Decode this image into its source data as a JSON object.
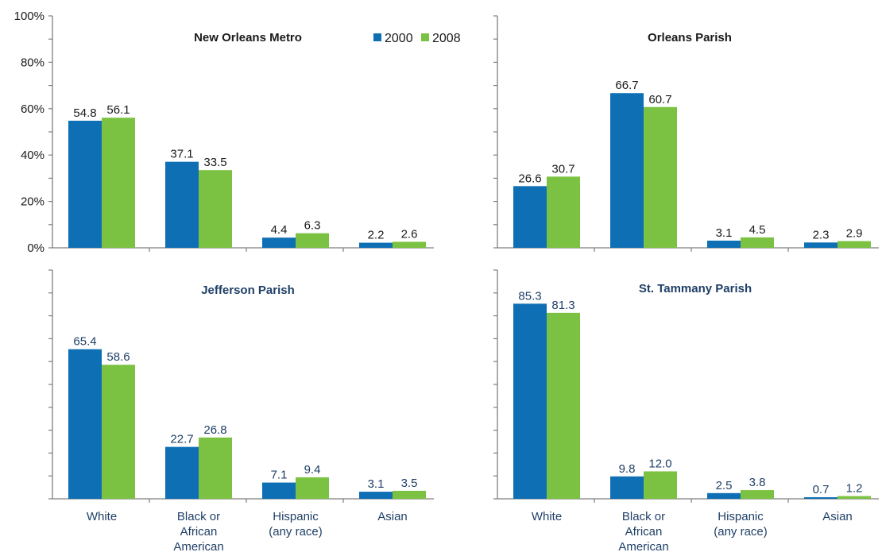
{
  "colors": {
    "series_2000": "#0f6fb4",
    "series_2008": "#7cc242",
    "axis": "#7f7f7f",
    "title_dark": "#1a1a1a",
    "title_blue": "#1f3f66"
  },
  "legend": {
    "placement": "top-right of first panel",
    "items": [
      "2000",
      "2008"
    ]
  },
  "chart_data": [
    {
      "type": "bar",
      "title": "New Orleans Metro",
      "categories": [
        "White",
        "Black or African American",
        "Hispanic (any race)",
        "Asian"
      ],
      "series": [
        {
          "name": "2000",
          "values": [
            54.8,
            37.1,
            4.4,
            2.2
          ]
        },
        {
          "name": "2008",
          "values": [
            56.1,
            33.5,
            6.3,
            2.6
          ]
        }
      ],
      "data_labels": [
        [
          "54.8",
          "37.1",
          "4.4",
          "2.2"
        ],
        [
          "56.1",
          "33.5",
          "6.3",
          "2.6"
        ]
      ],
      "ylim": [
        0,
        100
      ],
      "yticks": [
        "0%",
        "20%",
        "40%",
        "60%",
        "80%",
        "100%"
      ],
      "show_y_labels": true,
      "show_category_labels": false,
      "grid": false
    },
    {
      "type": "bar",
      "title": "Orleans Parish",
      "categories": [
        "White",
        "Black or African American",
        "Hispanic (any race)",
        "Asian"
      ],
      "series": [
        {
          "name": "2000",
          "values": [
            26.6,
            66.7,
            3.1,
            2.3
          ]
        },
        {
          "name": "2008",
          "values": [
            30.7,
            60.7,
            4.5,
            2.9
          ]
        }
      ],
      "data_labels": [
        [
          "26.6",
          "66.7",
          "3.1",
          "2.3"
        ],
        [
          "30.7",
          "60.7",
          "4.5",
          "2.9"
        ]
      ],
      "ylim": [
        0,
        100
      ],
      "show_y_labels": false,
      "show_category_labels": false,
      "grid": false
    },
    {
      "type": "bar",
      "title": "Jefferson Parish",
      "categories": [
        "White",
        "Black or African American",
        "Hispanic (any race)",
        "Asian"
      ],
      "series": [
        {
          "name": "2000",
          "values": [
            65.4,
            22.7,
            7.1,
            3.1
          ]
        },
        {
          "name": "2008",
          "values": [
            58.6,
            26.8,
            9.4,
            3.5
          ]
        }
      ],
      "data_labels": [
        [
          "65.4",
          "22.7",
          "7.1",
          "3.1"
        ],
        [
          "58.6",
          "26.8",
          "9.4",
          "3.5"
        ]
      ],
      "ylim": [
        0,
        100
      ],
      "show_y_labels": false,
      "show_category_labels": true,
      "grid": false
    },
    {
      "type": "bar",
      "title": "St. Tammany Parish",
      "categories": [
        "White",
        "Black or African American",
        "Hispanic (any race)",
        "Asian"
      ],
      "series": [
        {
          "name": "2000",
          "values": [
            85.3,
            9.8,
            2.5,
            0.7
          ]
        },
        {
          "name": "2008",
          "values": [
            81.3,
            12.0,
            3.8,
            1.2
          ]
        }
      ],
      "data_labels": [
        [
          "85.3",
          "9.8",
          "2.5",
          "0.7"
        ],
        [
          "81.3",
          "12.0",
          "3.8",
          "1.2"
        ]
      ],
      "ylim": [
        0,
        100
      ],
      "show_y_labels": false,
      "show_category_labels": true,
      "grid": false
    }
  ],
  "category_label_lines": [
    [
      "White"
    ],
    [
      "Black or",
      "African",
      "American"
    ],
    [
      "Hispanic",
      "(any race)"
    ],
    [
      "Asian"
    ]
  ]
}
